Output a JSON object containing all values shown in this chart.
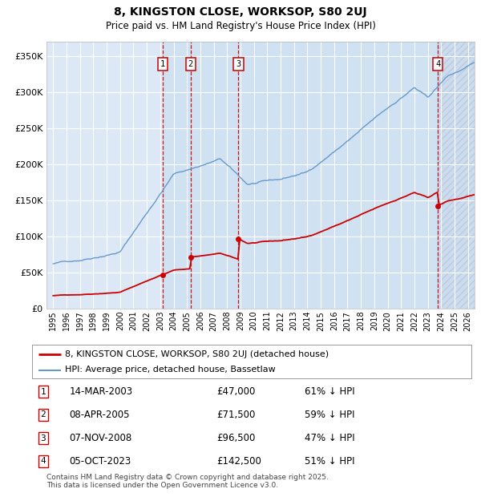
{
  "title": "8, KINGSTON CLOSE, WORKSOP, S80 2UJ",
  "subtitle": "Price paid vs. HM Land Registry's House Price Index (HPI)",
  "footer": "Contains HM Land Registry data © Crown copyright and database right 2025.\nThis data is licensed under the Open Government Licence v3.0.",
  "legend_property": "8, KINGSTON CLOSE, WORKSOP, S80 2UJ (detached house)",
  "legend_hpi": "HPI: Average price, detached house, Bassetlaw",
  "sales": [
    {
      "num": 1,
      "date": "14-MAR-2003",
      "price": 47000,
      "pct": "61%",
      "dir": "↓",
      "x_year": 2003.2
    },
    {
      "num": 2,
      "date": "08-APR-2005",
      "price": 71500,
      "pct": "59%",
      "dir": "↓",
      "x_year": 2005.27
    },
    {
      "num": 3,
      "date": "07-NOV-2008",
      "price": 96500,
      "pct": "47%",
      "dir": "↓",
      "x_year": 2008.85
    },
    {
      "num": 4,
      "date": "05-OCT-2023",
      "price": 142500,
      "pct": "51%",
      "dir": "↓",
      "x_year": 2023.75
    }
  ],
  "xlim": [
    1994.5,
    2026.5
  ],
  "ylim": [
    0,
    370000
  ],
  "yticks": [
    0,
    50000,
    100000,
    150000,
    200000,
    250000,
    300000,
    350000
  ],
  "ytick_labels": [
    "£0",
    "£50K",
    "£100K",
    "£150K",
    "£200K",
    "£250K",
    "£300K",
    "£350K"
  ],
  "background_color": "#ffffff",
  "plot_bg_color": "#dce8f5",
  "grid_color": "#ffffff",
  "property_line_color": "#cc0000",
  "hpi_line_color": "#6699cc",
  "dashed_line_color": "#cc0000",
  "shade_color": "#c8ddf0",
  "hatch_color": "#b0c8e0"
}
